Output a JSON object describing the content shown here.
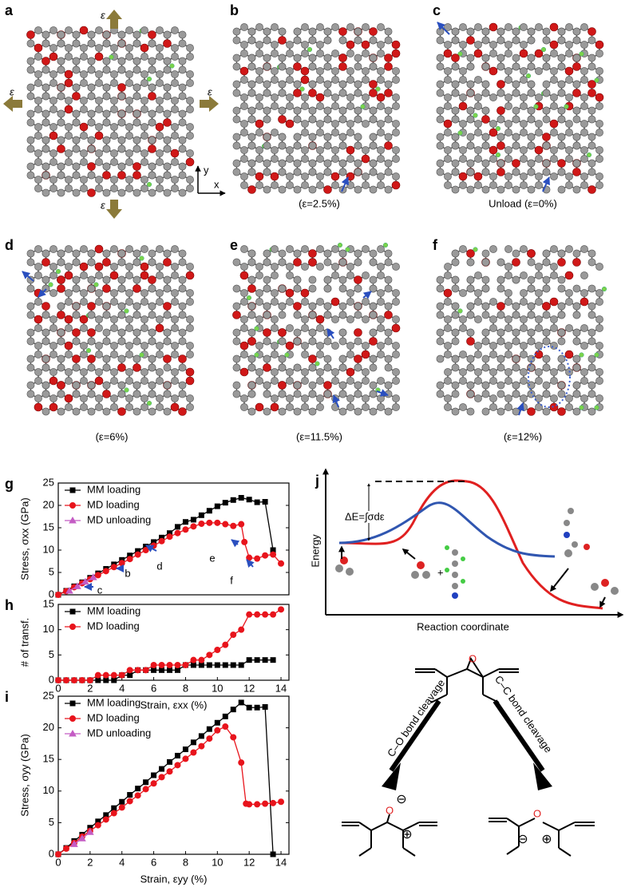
{
  "structures": [
    {
      "label": "a"
    },
    {
      "label": "b",
      "caption": "(ε=2.5%)"
    },
    {
      "label": "c",
      "caption": "Unload (ε=0%)"
    },
    {
      "label": "d",
      "caption": "(ε=6%)"
    },
    {
      "label": "e",
      "caption": "(ε=11.5%)"
    },
    {
      "label": "f",
      "caption": "(ε=12%)"
    }
  ],
  "strain_label": "ε",
  "axes_icon": {
    "x": "x",
    "y": "y"
  },
  "chart_data": [
    {
      "type": "line",
      "label": "g",
      "y_label": "Stress, σxx (GPa)",
      "xlim": [
        0,
        14.5
      ],
      "ylim": [
        0,
        25
      ],
      "yticks": [
        0,
        5,
        10,
        15,
        20,
        25
      ],
      "annotations": [
        "b",
        "c",
        "d",
        "e",
        "f"
      ],
      "series": [
        {
          "name": "MM loading",
          "color": "#000000",
          "marker": "square",
          "x": [
            0,
            0.5,
            1,
            1.5,
            2,
            2.5,
            3,
            3.5,
            4,
            4.5,
            5,
            5.5,
            6,
            6.5,
            7,
            7.5,
            8,
            8.5,
            9,
            9.5,
            10,
            10.5,
            11,
            11.5,
            12,
            12.5,
            13,
            13.5
          ],
          "values": [
            0,
            0.9,
            1.9,
            2.8,
            3.8,
            4.8,
            5.8,
            6.8,
            7.8,
            8.8,
            9.8,
            10.8,
            11.8,
            12.8,
            13.8,
            15.2,
            16.3,
            16.8,
            17.8,
            18.8,
            19.8,
            20.6,
            21.2,
            21.7,
            21.3,
            20.7,
            20.8,
            10
          ]
        },
        {
          "name": "MD loading",
          "color": "#e8141c",
          "marker": "circle",
          "x": [
            0,
            0.5,
            1,
            1.5,
            2,
            2.5,
            3,
            3.5,
            4,
            4.5,
            5,
            5.5,
            6,
            6.5,
            7,
            7.5,
            8,
            8.5,
            9,
            9.5,
            10,
            10.5,
            11,
            11.5,
            11.7,
            12,
            12.5,
            13,
            13.5,
            14
          ],
          "values": [
            0,
            0.8,
            1.7,
            2.6,
            3.5,
            4.4,
            5.3,
            6.2,
            7.1,
            8,
            9,
            10,
            11,
            12,
            13,
            13.8,
            14.6,
            15.3,
            15.9,
            16.1,
            16.1,
            15.8,
            15.4,
            15.8,
            11.8,
            8.3,
            8.1,
            8.8,
            9,
            7
          ]
        },
        {
          "name": "MD unloading",
          "color": "#c45cc4",
          "marker": "triangle",
          "x": [
            2.2,
            1.7,
            1.2,
            0.7
          ],
          "values": [
            3.9,
            2.9,
            1.9,
            0.9
          ]
        }
      ]
    },
    {
      "type": "line",
      "label": "h",
      "y_label": "# of transf.",
      "x_label": "Strain, εxx (%)",
      "xlim": [
        0,
        14.5
      ],
      "ylim": [
        0,
        15
      ],
      "yticks": [
        0,
        5,
        10,
        15
      ],
      "xticks": [
        0,
        2,
        4,
        6,
        8,
        10,
        12,
        14
      ],
      "series": [
        {
          "name": "MM loading",
          "color": "#000000",
          "marker": "square",
          "x": [
            0,
            0.5,
            1,
            1.5,
            2,
            2.5,
            3,
            3.5,
            4,
            4.5,
            5,
            5.5,
            6,
            6.5,
            7,
            7.5,
            8,
            8.5,
            9,
            9.5,
            10,
            10.5,
            11,
            11.5,
            12,
            12.5,
            13,
            13.5
          ],
          "values": [
            0,
            0,
            0,
            0,
            0,
            0,
            0,
            0,
            1,
            1,
            2,
            2,
            2,
            2,
            2,
            2,
            3,
            3,
            3,
            3,
            3,
            3,
            3,
            3,
            4,
            4,
            4,
            4
          ]
        },
        {
          "name": "MD loading",
          "color": "#e8141c",
          "marker": "circle",
          "x": [
            0,
            0.5,
            1,
            1.5,
            2,
            2.5,
            3,
            3.5,
            4,
            4.5,
            5,
            5.5,
            6,
            6.5,
            7,
            7.5,
            8,
            8.5,
            9,
            9.5,
            10,
            10.5,
            11,
            11.5,
            12,
            12.5,
            13,
            13.5,
            14
          ],
          "values": [
            0,
            0,
            0,
            0,
            0,
            1,
            1,
            1,
            1,
            2,
            2,
            2,
            3,
            3,
            3,
            3,
            3,
            4,
            4,
            5,
            6,
            7,
            9,
            10,
            13,
            13,
            13,
            13,
            14
          ]
        }
      ]
    },
    {
      "type": "line",
      "label": "i",
      "y_label": "Stress, σyy (GPa)",
      "x_label": "Strain, εyy (%)",
      "xlim": [
        0,
        14.5
      ],
      "ylim": [
        0,
        25
      ],
      "yticks": [
        0,
        5,
        10,
        15,
        20,
        25
      ],
      "xticks": [
        0,
        2,
        4,
        6,
        8,
        10,
        12,
        14
      ],
      "series": [
        {
          "name": "MM loading",
          "color": "#000000",
          "marker": "square",
          "x": [
            0,
            0.5,
            1,
            1.5,
            2,
            2.5,
            3,
            3.5,
            4,
            4.5,
            5,
            5.5,
            6,
            6.5,
            7,
            7.5,
            8,
            8.5,
            9,
            9.5,
            10,
            10.5,
            11,
            11.5,
            12,
            12.5,
            13,
            13.5
          ],
          "values": [
            0,
            1,
            2.1,
            3.1,
            4.2,
            5.2,
            6.2,
            7.3,
            8.3,
            9.4,
            10.4,
            11.4,
            12.5,
            13.5,
            14.6,
            15.6,
            16.6,
            17.7,
            18.7,
            19.8,
            20.8,
            21.8,
            22.9,
            24.0,
            23.2,
            23.2,
            23.3,
            0
          ]
        },
        {
          "name": "MD loading",
          "color": "#e8141c",
          "marker": "circle",
          "x": [
            0,
            0.5,
            1,
            1.5,
            2,
            2.5,
            3,
            3.5,
            4,
            4.5,
            5,
            5.5,
            6,
            6.5,
            7,
            7.5,
            8,
            8.5,
            9,
            9.5,
            10,
            10.5,
            11,
            11.5,
            11.8,
            12,
            12.5,
            13,
            13.5,
            14
          ],
          "values": [
            0,
            0.9,
            1.8,
            2.8,
            3.7,
            4.6,
            5.5,
            6.5,
            7.4,
            8.4,
            9.3,
            10.3,
            11.2,
            12.2,
            13.1,
            14.1,
            15.1,
            16.1,
            17.1,
            18.3,
            19.6,
            20.2,
            18.5,
            14.5,
            8,
            7.9,
            7.9,
            8,
            8.1,
            8.3
          ]
        },
        {
          "name": "MD unloading",
          "color": "#c45cc4",
          "marker": "triangle",
          "x": [
            2,
            1.5,
            1
          ],
          "values": [
            3.5,
            2.5,
            1.6
          ]
        }
      ]
    }
  ],
  "diagram": {
    "label": "j",
    "y_label": "Energy",
    "x_label": "Reaction coordinate",
    "barrier": "ΔE=∫σdε",
    "plus": "+"
  },
  "scheme": {
    "oxygen": "O",
    "left_path": "C–O bond cleavage",
    "right_path": "C–C bond cleavage",
    "minus": "⊖",
    "plus": "⊕"
  }
}
